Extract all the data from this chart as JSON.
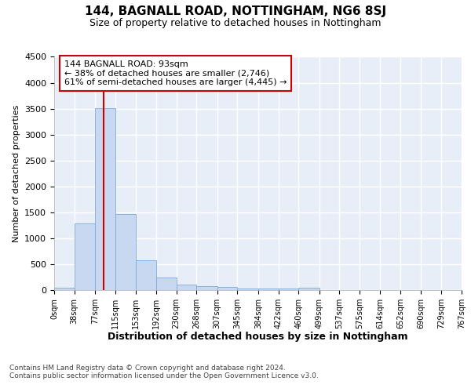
{
  "title": "144, BAGNALL ROAD, NOTTINGHAM, NG6 8SJ",
  "subtitle": "Size of property relative to detached houses in Nottingham",
  "xlabel": "Distribution of detached houses by size in Nottingham",
  "ylabel": "Number of detached properties",
  "footer_line1": "Contains HM Land Registry data © Crown copyright and database right 2024.",
  "footer_line2": "Contains public sector information licensed under the Open Government Licence v3.0.",
  "annotation_line1": "144 BAGNALL ROAD: 93sqm",
  "annotation_line2": "← 38% of detached houses are smaller (2,746)",
  "annotation_line3": "61% of semi-detached houses are larger (4,445) →",
  "bar_color": "#c8d8f0",
  "bar_edge_color": "#7aabdc",
  "red_line_color": "#cc0000",
  "background_color": "#e8eef8",
  "grid_color": "#ffffff",
  "annotation_box_color": "#cc0000",
  "bins": [
    0,
    38,
    77,
    115,
    153,
    192,
    230,
    268,
    307,
    345,
    384,
    422,
    460,
    499,
    537,
    575,
    614,
    652,
    690,
    729,
    767
  ],
  "bar_heights": [
    40,
    1280,
    3510,
    1460,
    575,
    240,
    110,
    80,
    55,
    25,
    25,
    35,
    50,
    0,
    0,
    0,
    0,
    0,
    0,
    0
  ],
  "red_line_x": 93,
  "ylim": [
    0,
    4500
  ],
  "yticks": [
    0,
    500,
    1000,
    1500,
    2000,
    2500,
    3000,
    3500,
    4000,
    4500
  ]
}
